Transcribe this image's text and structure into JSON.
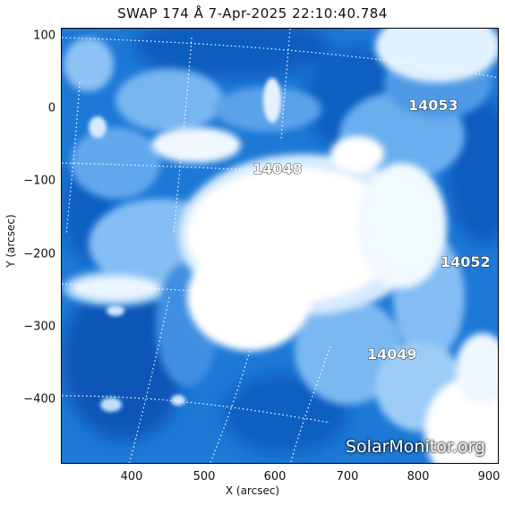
{
  "header": {
    "title": "SWAP 174 Å   7-Apr-2025 22:10:40.784"
  },
  "axes": {
    "xlabel": "X (arcsec)",
    "ylabel": "Y (arcsec)",
    "xticks": [
      "400",
      "500",
      "600",
      "700",
      "800",
      "900"
    ],
    "yticks": [
      "100",
      "0",
      "−100",
      "−200",
      "−300",
      "−400"
    ]
  },
  "active_regions": [
    {
      "label": "14053"
    },
    {
      "label": "14048"
    },
    {
      "label": "14052"
    },
    {
      "label": "14049"
    }
  ],
  "watermark": "SolarMonitor.org",
  "colors": {
    "base": "#1d78d6",
    "dark": "#0a55b6",
    "mid": "#62a8ee",
    "light": "#b9dcfb",
    "bright": "#ffffff"
  }
}
